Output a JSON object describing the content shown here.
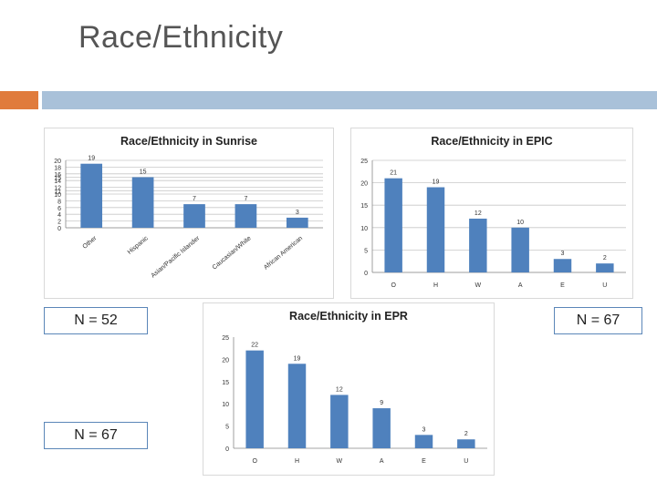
{
  "slide": {
    "title": "Race/Ethnicity"
  },
  "colors": {
    "bar": "#4f81bd",
    "accent": "#e07b3c",
    "band": "#a9c1d9"
  },
  "notes": {
    "sunrise_n": "N = 52",
    "epic_n": "N = 67",
    "epr_n": "N = 67"
  },
  "chart_data": [
    {
      "type": "bar",
      "title": "Race/Ethnicity in Sunrise",
      "categories": [
        "Other",
        "Hispanic",
        "Asian/Pacific Islander",
        "Caucasian/White",
        "African American"
      ],
      "values": [
        19,
        15,
        7,
        7,
        3
      ],
      "yticks": [
        0,
        2,
        4,
        6,
        8,
        10,
        11,
        12,
        14,
        15,
        16,
        18,
        20
      ],
      "ylim": [
        0,
        20
      ],
      "grid": true
    },
    {
      "type": "bar",
      "title": "Race/Ethnicity in EPIC",
      "categories": [
        "O",
        "H",
        "W",
        "A",
        "E",
        "U"
      ],
      "values": [
        21,
        19,
        12,
        10,
        3,
        2
      ],
      "yticks": [
        0,
        5,
        10,
        15,
        20,
        25
      ],
      "ylim": [
        0,
        25
      ],
      "grid": true
    },
    {
      "type": "bar",
      "title": "Race/Ethnicity in EPR",
      "categories": [
        "O",
        "H",
        "W",
        "A",
        "E",
        "U"
      ],
      "values": [
        22,
        19,
        12,
        9,
        3,
        2
      ],
      "yticks": [
        0,
        5,
        10,
        15,
        20,
        25
      ],
      "ylim": [
        0,
        25
      ],
      "grid": false
    }
  ]
}
